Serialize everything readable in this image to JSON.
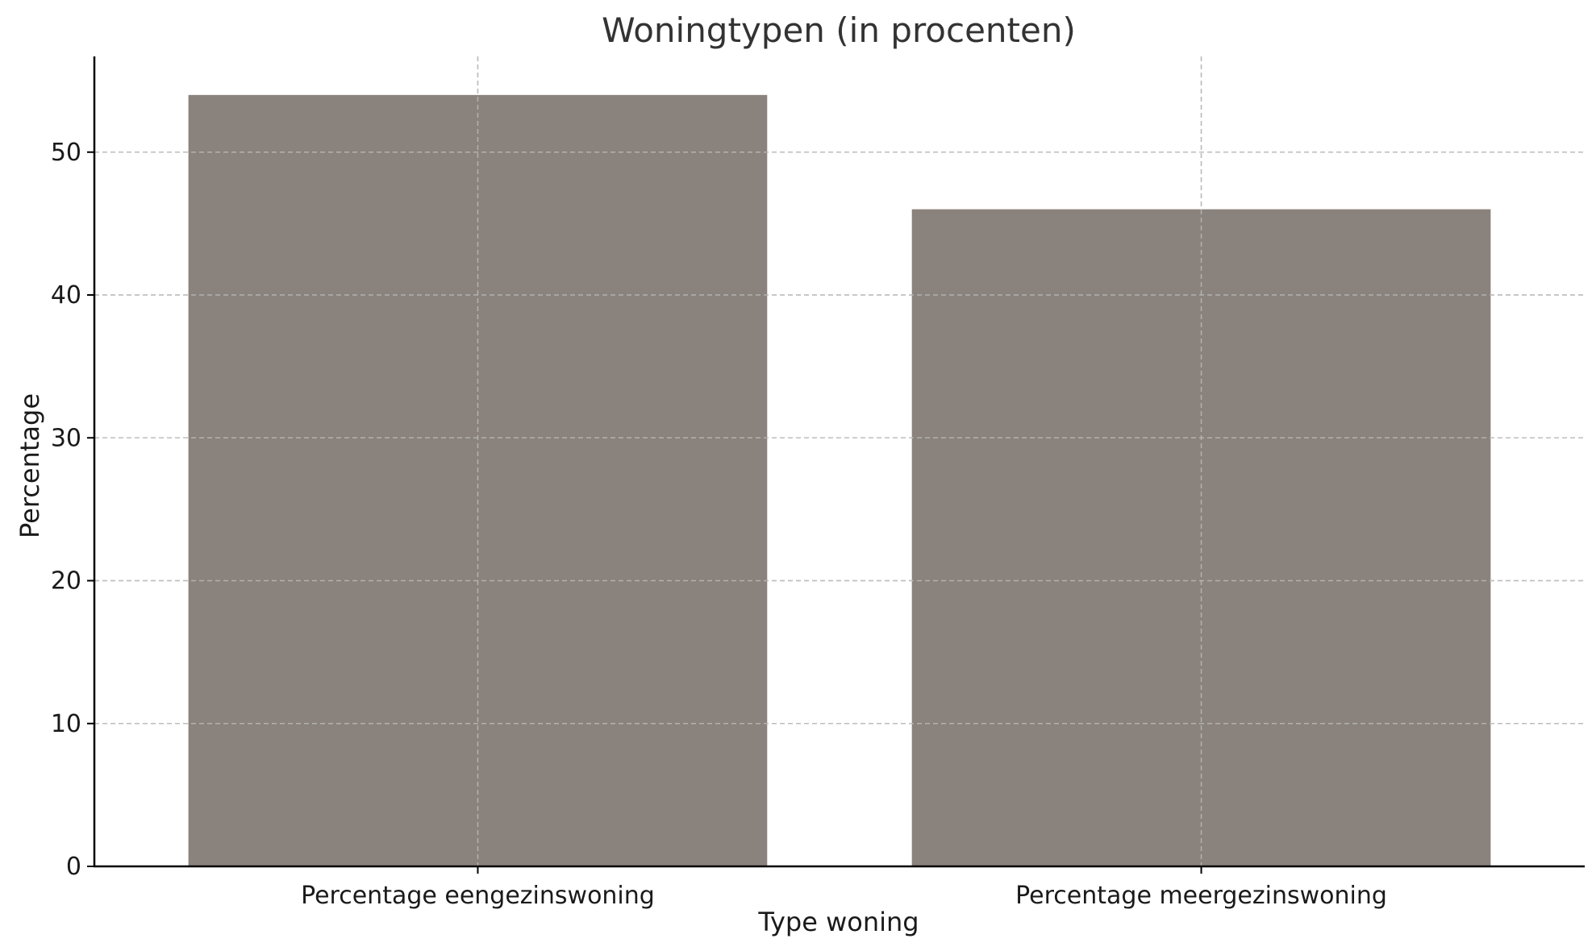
{
  "chart_data": {
    "type": "bar",
    "title": "Woningtypen (in procenten)",
    "xlabel": "Type woning",
    "ylabel": "Percentage",
    "categories": [
      "Percentage eengezinswoning",
      "Percentage meergezinswoning"
    ],
    "values": [
      54,
      46
    ],
    "yticks": [
      0,
      10,
      20,
      30,
      40,
      50
    ],
    "ylim": [
      0,
      56.7
    ],
    "grid": true,
    "bar_color": "#8a827c"
  }
}
